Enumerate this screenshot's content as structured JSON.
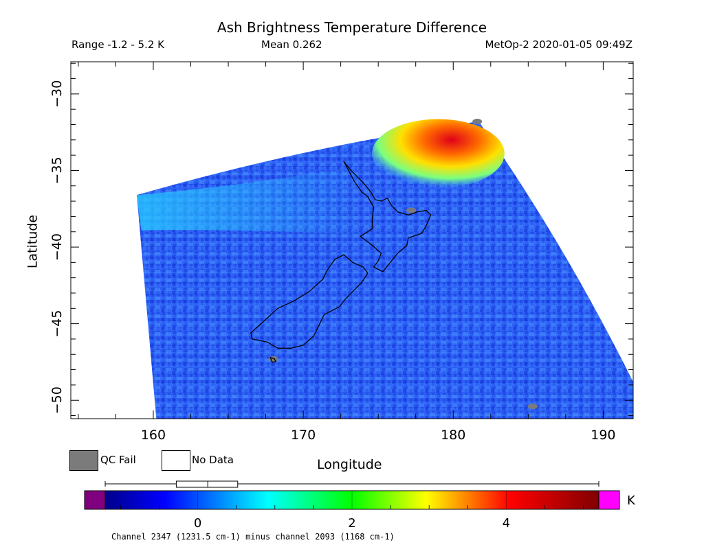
{
  "header": {
    "title": "Ash Brightness Temperature Difference",
    "range": "Range -1.2 - 5.2 K",
    "mean": "Mean 0.262",
    "satellite_time": "MetOp-2 2020-01-05 09:49Z"
  },
  "chart_data": {
    "type": "heatmap",
    "xlabel": "Longitude",
    "ylabel": "Latitude",
    "xlim": [
      154.5,
      192
    ],
    "ylim": [
      -51.2,
      -27.9
    ],
    "x_ticks": [
      160,
      170,
      180,
      190
    ],
    "x_tick_labels": [
      "160",
      "170",
      "180",
      "190"
    ],
    "y_ticks": [
      -30,
      -35,
      -40,
      -45,
      -50
    ],
    "y_tick_labels": [
      "-30",
      "-35",
      "-40",
      "-45",
      "-50"
    ],
    "grid": false,
    "value_range": [
      -1.2,
      5.2
    ],
    "mean_value": 0.262,
    "unit": "K",
    "colorbar": {
      "min": -1.2,
      "max": 5.2,
      "ticks": [
        0,
        2,
        4
      ],
      "tick_labels": [
        "0",
        "2",
        "4"
      ],
      "box_quartiles": [
        -0.1,
        0.13,
        0.34
      ],
      "whisker_range": [
        -1.2,
        5.2
      ],
      "under_color": "#800080",
      "over_color": "#ff00ff"
    },
    "swath_corner_points": [
      {
        "lon": 158.9,
        "lat": -36.6
      },
      {
        "lon": 181.7,
        "lat": -31.8
      },
      {
        "lon": 192,
        "lat": -48.8
      },
      {
        "lon": 192,
        "lat": -51.2
      },
      {
        "lon": 160.2,
        "lat": -51.2
      }
    ],
    "features": [
      {
        "name": "ash_signal_region",
        "lon_range": [
          175.5,
          182.5
        ],
        "lat_range": [
          -35.8,
          -32.0
        ],
        "value_approx": 4.0
      },
      {
        "name": "qc_fail_pixel",
        "lon": 181.6,
        "lat": -31.8
      },
      {
        "name": "qc_fail_pixel",
        "lon": 177.2,
        "lat": -37.6
      },
      {
        "name": "qc_fail_pixel",
        "lon": 168.0,
        "lat": -47.3
      },
      {
        "name": "qc_fail_pixel",
        "lon": 185.3,
        "lat": -50.4
      }
    ]
  },
  "legend": {
    "qc_fail_label": "QC Fail",
    "no_data_label": "No Data",
    "qc_fail_color": "#7b7b7b",
    "no_data_color": "#ffffff"
  },
  "footer": {
    "unit": "K",
    "caption": "Channel 2347 (1231.5 cm-1) minus channel 2093 (1168 cm-1)"
  }
}
